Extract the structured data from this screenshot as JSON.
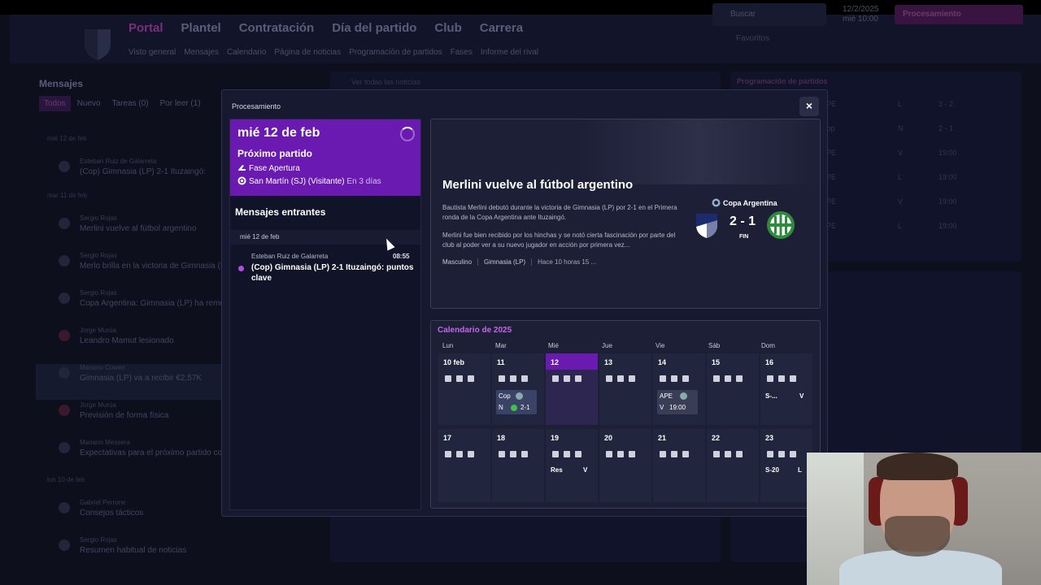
{
  "header": {
    "nav_main": [
      "Portal",
      "Plantel",
      "Contratación",
      "Día del partido",
      "Club",
      "Carrera"
    ],
    "nav_sub": [
      "Visto general",
      "Mensajes",
      "Calendario",
      "Página de noticias",
      "Programación de partidos",
      "Fases",
      "Informe del rival"
    ],
    "search": "Buscar",
    "date_line1": "12/2/2025",
    "date_line2": "mié 10:00",
    "process_button": "Procesamiento",
    "favorites": "Favoritos"
  },
  "bg_messages": {
    "title": "Mensajes",
    "tabs": [
      "Todos",
      "Nuevo",
      "Tareas (0)",
      "Por leer (1)"
    ],
    "date_groups": [
      "mié 12 de feb",
      "mar 11 de feb",
      "lun 10 de feb"
    ],
    "rows": [
      {
        "from": "Esteban Ruiz de Galarreta",
        "subject": "(Cop) Gimnasia (LP) 2-1 Ituzaingó:"
      },
      {
        "from": "Sergio Rojas",
        "subject": "Merlini vuelve al fútbol argentino"
      },
      {
        "from": "Sergio Rojas",
        "subject": "Merlo brilla en la victoria de Gimnasia (LP)"
      },
      {
        "from": "Sergio Rojas",
        "subject": "Copa Argentina: Gimnasia (LP) ha remontado"
      },
      {
        "from": "Jorge Murúa",
        "subject": "Leandro Mamut lesionado"
      },
      {
        "from": "Mariano Cowen",
        "subject": "Gimnasia (LP) va a recibir €2,57K"
      },
      {
        "from": "Jorge Murúa",
        "subject": "Previsión de forma física"
      },
      {
        "from": "Mariano Messera",
        "subject": "Expectativas para el próximo partido contra"
      },
      {
        "from": "Gabriel Perrone",
        "subject": "Consejos tácticos"
      },
      {
        "from": "Sergio Rojas",
        "subject": "Resumen habitual de noticias"
      }
    ]
  },
  "bg_news": {
    "title": "Ver todas las noticias"
  },
  "bg_schedule": {
    "title": "Programación de partidos",
    "rows": [
      {
        "comp": "APE",
        "venue": "L",
        "result": "3 - 2"
      },
      {
        "comp": "Cop",
        "venue": "N",
        "result": "2 - 1"
      },
      {
        "comp": "APE",
        "venue": "V",
        "result": "19:00"
      },
      {
        "comp": "APE",
        "venue": "L",
        "result": "19:00"
      },
      {
        "comp": "APE",
        "venue": "V",
        "result": "19:00"
      },
      {
        "comp": "APE",
        "venue": "L",
        "result": "19:00"
      }
    ]
  },
  "modal": {
    "title": "Procesamiento",
    "close_label": "×",
    "next_match": {
      "date": "mié 12 de feb",
      "label": "Próximo partido",
      "phase": "Fase Apertura",
      "opponent": "San Martín (SJ) (Visitante)",
      "when": "En 3 días"
    },
    "inbox": {
      "title": "Mensajes entrantes",
      "date": "mié 12 de feb",
      "from": "Esteban Ruiz de Galarreta",
      "time": "08:55",
      "subject": "(Cop) Gimnasia (LP) 2-1 Ituzaingó: puntos clave"
    },
    "news": {
      "headline": "Merlini vuelve al fútbol argentino",
      "p1": "Bautista Merlini debutó durante la victoria de Gimnasia (LP) por 2-1 en el Primera ronda de la Copa Argentina ante Ituzaingó.",
      "p2": "Merlini fue bien recibido por los hinchas y se notó cierta fascinación por parte del club al poder ver a su nuevo jugador en acción por primera vez...",
      "tags": [
        "Masculino",
        "Gimnasia (LP)",
        "Hace 10 horas 15 ..."
      ],
      "competition": "Copa Argentina",
      "score": "2 - 1",
      "status": "FIN"
    },
    "calendar": {
      "title": "Calendario de 2025",
      "days_of_week": [
        "Lun",
        "Mar",
        "Mié",
        "Jue",
        "Vie",
        "Sáb",
        "Dom"
      ],
      "week1": [
        "10 feb",
        "11",
        "12",
        "13",
        "14",
        "15",
        "16"
      ],
      "week2": [
        "17",
        "18",
        "19",
        "20",
        "21",
        "22",
        "23"
      ],
      "match_11": {
        "comp": "Cop",
        "venue": "N",
        "result": "2-1"
      },
      "match_14": {
        "comp": "APE",
        "venue": "V",
        "time": "19:00"
      },
      "tag_16": {
        "a": "S-...",
        "b": "V"
      },
      "tag_19": {
        "a": "Res",
        "b": "V"
      },
      "tag_23": {
        "a": "S-20",
        "b": "L"
      }
    }
  },
  "colors": {
    "accent_purple": "#6a1ab0",
    "calendar_title": "#c466e8",
    "modal_bg": "#161930",
    "card_bg": "#1c1f36"
  }
}
